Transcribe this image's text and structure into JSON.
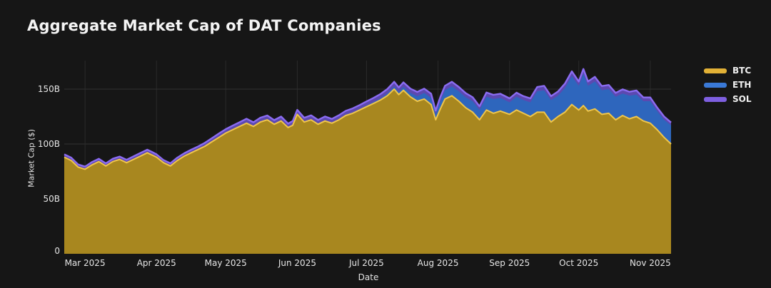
{
  "title": "Aggregate Market Cap of DAT Companies",
  "colors": {
    "background": "#161616",
    "grid_vertical": "#2a2a2a",
    "grid_horizontal": "#313131",
    "tick_text": "#e6e6e6",
    "axis_label_text": "#e2e2e2",
    "title_text": "#f4f4f4"
  },
  "chart_data": {
    "type": "area",
    "stacked": true,
    "title": "Aggregate Market Cap of DAT Companies",
    "xlabel": "Date",
    "ylabel": "Market Cap ($)",
    "legend_position": "top-right-outside",
    "grid": true,
    "x_unit": "days since 2025-02-20",
    "xlim": [
      0,
      263
    ],
    "ylim": [
      0,
      176
    ],
    "y_ticks": [
      {
        "value": 0,
        "label": "0"
      },
      {
        "value": 50,
        "label": "50B"
      },
      {
        "value": 100,
        "label": "100B"
      },
      {
        "value": 150,
        "label": "150B"
      }
    ],
    "x_ticks": [
      {
        "day": 9,
        "label": "Mar 2025"
      },
      {
        "day": 40,
        "label": "Apr 2025"
      },
      {
        "day": 70,
        "label": "May 2025"
      },
      {
        "day": 101,
        "label": "Jun 2025"
      },
      {
        "day": 131,
        "label": "Jul 2025"
      },
      {
        "day": 162,
        "label": "Aug 2025"
      },
      {
        "day": 193,
        "label": "Sep 2025"
      },
      {
        "day": 223,
        "label": "Oct 2025"
      },
      {
        "day": 254,
        "label": "Nov 2025"
      }
    ],
    "x": [
      0,
      3,
      6,
      9,
      12,
      15,
      18,
      21,
      24,
      27,
      30,
      33,
      36,
      38,
      40,
      43,
      46,
      49,
      52,
      55,
      58,
      61,
      64,
      67,
      70,
      73,
      76,
      79,
      82,
      85,
      88,
      91,
      94,
      97,
      99,
      101,
      104,
      107,
      110,
      113,
      116,
      119,
      122,
      125,
      128,
      131,
      134,
      137,
      140,
      143,
      145,
      147,
      150,
      153,
      156,
      159,
      161,
      163,
      165,
      168,
      171,
      174,
      177,
      180,
      183,
      186,
      189,
      193,
      196,
      199,
      202,
      205,
      208,
      211,
      214,
      217,
      220,
      223,
      225,
      227,
      230,
      233,
      236,
      239,
      242,
      245,
      248,
      251,
      254,
      257,
      260,
      263
    ],
    "series": [
      {
        "name": "BTC",
        "fill": "#a8871f",
        "stroke": "#f0c64a",
        "legend_color": "#e2b136",
        "values": [
          88,
          85,
          79,
          77,
          81,
          84,
          80,
          84,
          86,
          83,
          86,
          89,
          92,
          90,
          88,
          83,
          80,
          85,
          89,
          92,
          95,
          98,
          102,
          106,
          110,
          113,
          116,
          119,
          116,
          120,
          122,
          118,
          121,
          115,
          117,
          127,
          120,
          122,
          118,
          121,
          119,
          122,
          126,
          128,
          131,
          134,
          137,
          140,
          144,
          150,
          145,
          149,
          143,
          139,
          141,
          136,
          122,
          132,
          141,
          144,
          139,
          133,
          129,
          122,
          131,
          128,
          130,
          127,
          131,
          128,
          125,
          129,
          129,
          120,
          125,
          129,
          136,
          131,
          135,
          130,
          132,
          127,
          128,
          122,
          126,
          123,
          125,
          121,
          119,
          113,
          106,
          100
        ]
      },
      {
        "name": "ETH",
        "fill": "#2e66bd",
        "stroke": "#4f8ae0",
        "legend_color": "#3a79d6",
        "values": [
          0.4,
          0.4,
          0.4,
          0.4,
          0.4,
          0.4,
          0.4,
          0.4,
          0.4,
          0.4,
          0.4,
          0.4,
          0.4,
          0.4,
          0.4,
          0.4,
          0.4,
          0.4,
          0.4,
          0.4,
          0.4,
          0.5,
          0.5,
          0.5,
          0.5,
          0.6,
          0.6,
          0.6,
          0.6,
          0.6,
          0.6,
          0.6,
          0.6,
          0.6,
          0.7,
          0.7,
          0.7,
          0.7,
          0.7,
          0.7,
          0.7,
          0.8,
          0.8,
          0.8,
          0.9,
          1.0,
          1.2,
          1.5,
          2.0,
          2.5,
          2.5,
          3.0,
          3.5,
          4.5,
          5.5,
          6.0,
          5.0,
          7.0,
          8.0,
          8.5,
          9.0,
          9.5,
          10,
          9,
          12,
          13,
          12,
          11,
          12,
          12,
          13,
          19,
          20,
          20,
          19,
          22,
          26,
          22,
          29,
          23,
          25,
          22,
          22,
          21,
          20,
          21,
          20,
          18,
          20,
          17,
          16,
          17
        ]
      },
      {
        "name": "SOL",
        "fill": "#5c49b0",
        "stroke": "#8b6cf2",
        "legend_color": "#7e5fe0",
        "values": [
          2.2,
          2.2,
          2.0,
          2.0,
          2.2,
          2.2,
          2.0,
          2.2,
          2.2,
          2.2,
          2.4,
          2.4,
          2.4,
          2.4,
          2.2,
          2.0,
          2.0,
          2.2,
          2.2,
          2.4,
          2.4,
          2.6,
          2.8,
          3.0,
          3.0,
          3.2,
          3.2,
          3.4,
          3.2,
          3.4,
          3.4,
          3.2,
          3.4,
          3.0,
          3.2,
          3.4,
          3.2,
          3.4,
          3.2,
          3.4,
          3.2,
          3.4,
          3.4,
          3.6,
          3.6,
          3.8,
          3.8,
          4.0,
          4.0,
          4.2,
          4.0,
          4.2,
          4.0,
          4.0,
          4.0,
          3.8,
          3.4,
          3.8,
          4.0,
          4.2,
          4.0,
          3.8,
          3.6,
          3.4,
          4.0,
          3.8,
          3.8,
          3.6,
          3.8,
          3.6,
          3.6,
          4.0,
          4.0,
          3.6,
          3.8,
          4.0,
          4.2,
          4.0,
          4.4,
          4.0,
          4.2,
          3.8,
          3.8,
          3.6,
          3.8,
          3.6,
          3.8,
          3.4,
          3.4,
          3.2,
          3.0,
          2.6
        ]
      }
    ]
  },
  "legend": {
    "items": [
      {
        "label": "BTC"
      },
      {
        "label": "ETH"
      },
      {
        "label": "SOL"
      }
    ]
  }
}
